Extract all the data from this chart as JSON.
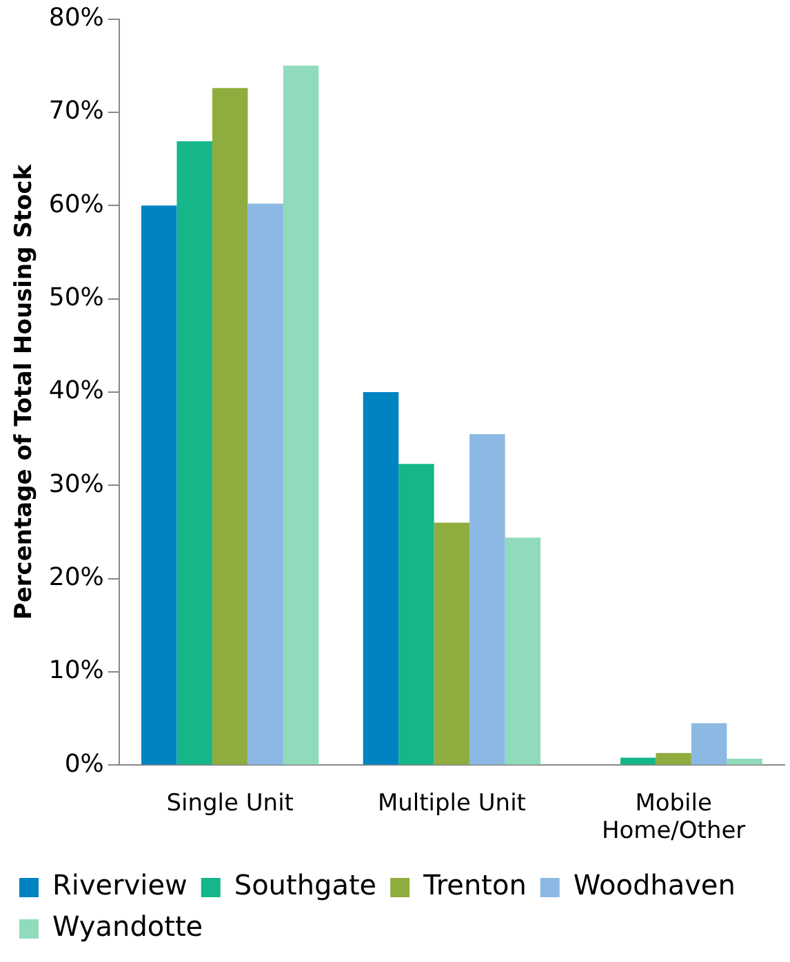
{
  "chart_data": {
    "type": "bar",
    "ylabel": "Percentage of Total Housing Stock",
    "categories": [
      "Single Unit",
      "Multiple Unit",
      "Mobile Home/Other"
    ],
    "series": [
      {
        "name": "Riverview",
        "color": "#0083c1",
        "values": [
          60,
          40,
          0
        ]
      },
      {
        "name": "Southgate",
        "color": "#14b68a",
        "values": [
          66.9,
          32.3,
          0.8
        ]
      },
      {
        "name": "Trenton",
        "color": "#8fac3f",
        "values": [
          72.6,
          26,
          1.3
        ]
      },
      {
        "name": "Woodhaven",
        "color": "#8cb9e3",
        "values": [
          60.2,
          35.5,
          4.5
        ]
      },
      {
        "name": "Wyandotte",
        "color": "#8fdbbb",
        "values": [
          75,
          24.4,
          0.7
        ]
      }
    ],
    "ylim": [
      0,
      80
    ],
    "yticks": [
      {
        "value": 0,
        "label": "0%"
      },
      {
        "value": 10,
        "label": "10%"
      },
      {
        "value": 20,
        "label": "20%"
      },
      {
        "value": 30,
        "label": "30%"
      },
      {
        "value": 40,
        "label": "40%"
      },
      {
        "value": 50,
        "label": "50%"
      },
      {
        "value": 60,
        "label": "60%"
      },
      {
        "value": 70,
        "label": "70%"
      },
      {
        "value": 80,
        "label": "80%"
      }
    ],
    "grid": false,
    "legend": "bottom"
  }
}
